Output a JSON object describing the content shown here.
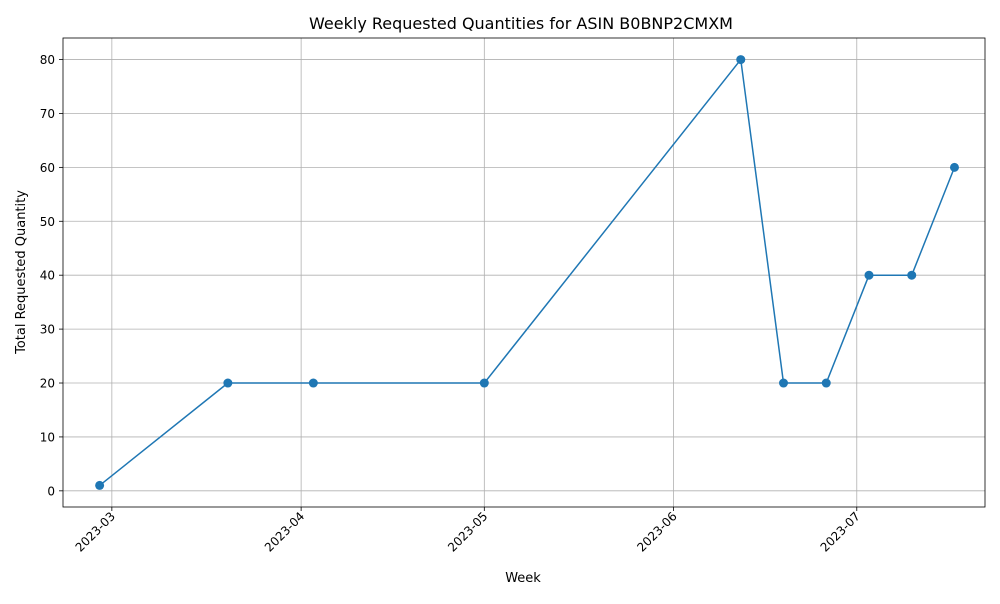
{
  "chart_data": {
    "type": "line",
    "title": "Weekly Requested Quantities for ASIN B0BNP2CMXM",
    "xlabel": "Week",
    "ylabel": "Total Requested Quantity",
    "x_ticks": [
      "2023-03",
      "2023-04",
      "2023-05",
      "2023-06",
      "2023-07"
    ],
    "x_tick_dates": [
      "2023-03-01",
      "2023-04-01",
      "2023-05-01",
      "2023-06-01",
      "2023-07-01"
    ],
    "y_ticks": [
      0,
      10,
      20,
      30,
      40,
      50,
      60,
      70,
      80
    ],
    "xlim": [
      "2023-02-21",
      "2023-07-22"
    ],
    "ylim": [
      -3,
      84
    ],
    "grid": true,
    "series": [
      {
        "color": "#1f77b4",
        "marker": "circle",
        "points": [
          {
            "x": "2023-02-27",
            "y": 1
          },
          {
            "x": "2023-03-20",
            "y": 20
          },
          {
            "x": "2023-04-03",
            "y": 20
          },
          {
            "x": "2023-05-01",
            "y": 20
          },
          {
            "x": "2023-06-12",
            "y": 80
          },
          {
            "x": "2023-06-19",
            "y": 20
          },
          {
            "x": "2023-06-26",
            "y": 20
          },
          {
            "x": "2023-07-03",
            "y": 40
          },
          {
            "x": "2023-07-10",
            "y": 40
          },
          {
            "x": "2023-07-17",
            "y": 60
          }
        ]
      }
    ]
  }
}
